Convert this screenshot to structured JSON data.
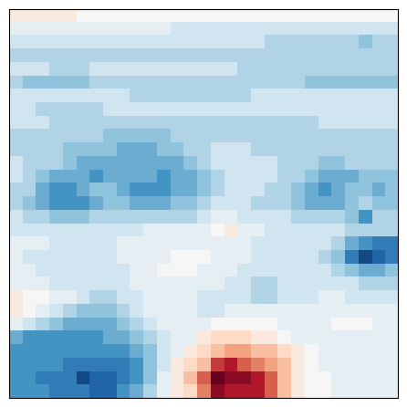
{
  "chart_data": {
    "type": "heatmap",
    "tick_labels": false,
    "zlim": [
      -10,
      10
    ],
    "color": "RdBu_r",
    "cells": [
      [
        1,
        1,
        1,
        1,
        1,
        0,
        0,
        0,
        0,
        0,
        0,
        0,
        0,
        0,
        0,
        0,
        0,
        0,
        0,
        0,
        0,
        0,
        0,
        0,
        0,
        0,
        0,
        0,
        0
      ],
      [
        -1,
        -1,
        -1,
        -1,
        -1,
        -1,
        -1,
        -1,
        -1,
        -1,
        -1,
        -1,
        -2,
        -2,
        -2,
        -2,
        -2,
        -2,
        -2,
        -2,
        -2,
        -2,
        -2,
        -2,
        -2,
        -2,
        -2,
        -2,
        -2
      ],
      [
        -2,
        -2,
        -2,
        -2,
        -2,
        -2,
        -2,
        -2,
        -2,
        -2,
        -2,
        -2,
        -2,
        -2,
        -2,
        -2,
        -2,
        -2,
        -2,
        -3,
        -3,
        -3,
        -3,
        -3,
        -3,
        -3,
        -4,
        -3,
        -3
      ],
      [
        -3,
        -3,
        -3,
        -3,
        -3,
        -3,
        -3,
        -3,
        -3,
        -3,
        -3,
        -3,
        -3,
        -3,
        -3,
        -3,
        -3,
        -3,
        -3,
        -3,
        -3,
        -3,
        -3,
        -3,
        -3,
        -3,
        -3,
        -3,
        -3
      ],
      [
        -2,
        -2,
        -2,
        -3,
        -3,
        -3,
        -2,
        -2,
        -2,
        -2,
        -2,
        -2,
        -2,
        -2,
        -2,
        -2,
        -2,
        -3,
        -3,
        -3,
        -3,
        -3,
        -3,
        -3,
        -3,
        -3,
        -3,
        -3,
        -3
      ],
      [
        -3,
        -4,
        -4,
        -4,
        -4,
        -4,
        -3,
        -3,
        -3,
        -3,
        -3,
        -3,
        -3,
        -3,
        -3,
        -3,
        -3,
        -3,
        -3,
        -3,
        -3,
        -3,
        -4,
        -4,
        -4,
        -4,
        -4,
        -4,
        -4
      ],
      [
        -2,
        -2,
        -2,
        -2,
        -2,
        -2,
        -2,
        -2,
        -2,
        -3,
        -3,
        -3,
        -3,
        -3,
        -3,
        -3,
        -3,
        -3,
        -2,
        -2,
        -2,
        -2,
        -2,
        -2,
        -2,
        -2,
        -2,
        -2,
        -2
      ],
      [
        -2,
        -2,
        -3,
        -3,
        -3,
        -3,
        -3,
        -2,
        -2,
        -2,
        -2,
        -2,
        -2,
        -2,
        -2,
        -2,
        -2,
        -2,
        -2,
        -2,
        -2,
        -2,
        -2,
        -2,
        -2,
        -2,
        -2,
        -2,
        -2
      ],
      [
        -2,
        -2,
        -2,
        -3,
        -3,
        -3,
        -3,
        -3,
        -3,
        -3,
        -3,
        -3,
        -3,
        -3,
        -3,
        -3,
        -3,
        -3,
        -3,
        -3,
        -3,
        -3,
        -3,
        -2,
        -2,
        -2,
        -2,
        -2,
        -2
      ],
      [
        -3,
        -3,
        -3,
        -3,
        -3,
        -3,
        -3,
        -4,
        -4,
        -4,
        -4,
        -4,
        -3,
        -3,
        -3,
        -3,
        -3,
        -3,
        -3,
        -3,
        -3,
        -3,
        -3,
        -3,
        -3,
        -3,
        -3,
        -3,
        -3
      ],
      [
        -3,
        -3,
        -3,
        -3,
        -4,
        -4,
        -4,
        -4,
        -5,
        -5,
        -5,
        -4,
        -4,
        -3,
        -3,
        -2,
        -2,
        -2,
        -3,
        -3,
        -3,
        -3,
        -3,
        -3,
        -3,
        -3,
        -3,
        -3,
        -3
      ],
      [
        -2,
        -3,
        -3,
        -3,
        -4,
        -5,
        -5,
        -5,
        -5,
        -5,
        -5,
        -5,
        -5,
        -4,
        -3,
        -2,
        -2,
        -2,
        -2,
        -2,
        -3,
        -3,
        -3,
        -4,
        -4,
        -3,
        -3,
        -3,
        -3
      ],
      [
        -2,
        -3,
        -4,
        -5,
        -5,
        -5,
        -6,
        -5,
        -5,
        -5,
        -5,
        -6,
        -5,
        -5,
        -4,
        -3,
        -2,
        -2,
        -2,
        -2,
        -3,
        -3,
        -4,
        -5,
        -5,
        -5,
        -4,
        -4,
        -4
      ],
      [
        -3,
        -3,
        -5,
        -6,
        -6,
        -5,
        -4,
        -4,
        -5,
        -6,
        -6,
        -6,
        -5,
        -5,
        -4,
        -3,
        -2,
        -2,
        -2,
        -3,
        -3,
        -4,
        -5,
        -6,
        -5,
        -4,
        -4,
        -5,
        -4
      ],
      [
        -3,
        -4,
        -5,
        -6,
        -6,
        -6,
        -5,
        -4,
        -4,
        -5,
        -5,
        -5,
        -4,
        -4,
        -3,
        -2,
        -2,
        -2,
        -3,
        -3,
        -3,
        -4,
        -5,
        -5,
        -5,
        -4,
        -3,
        -4,
        -4
      ],
      [
        -2,
        -3,
        -3,
        -4,
        -4,
        -4,
        -3,
        -3,
        -3,
        -3,
        -3,
        -3,
        -3,
        -3,
        -2,
        -1,
        -1,
        -2,
        -2,
        -2,
        -2,
        -3,
        -3,
        -3,
        -3,
        -4,
        -6,
        -3,
        -3
      ],
      [
        -2,
        -2,
        -2,
        -2,
        -2,
        -2,
        -2,
        -2,
        -2,
        -2,
        -1,
        -1,
        -1,
        -1,
        -1,
        0,
        1,
        -1,
        -1,
        -2,
        -2,
        -2,
        -2,
        -2,
        -2,
        -3,
        -3,
        -3,
        -3
      ],
      [
        -1,
        -1,
        -1,
        -2,
        -2,
        -2,
        -2,
        -2,
        -1,
        -1,
        -1,
        -1,
        -1,
        -1,
        -1,
        -1,
        -1,
        -1,
        -2,
        -2,
        -2,
        -2,
        -2,
        -2,
        -3,
        -5,
        -6,
        -7,
        -7
      ],
      [
        -1,
        -2,
        -2,
        -2,
        -2,
        -2,
        -2,
        -2,
        -1,
        -1,
        -1,
        -1,
        0,
        0,
        0,
        -1,
        -1,
        -1,
        -2,
        -2,
        -2,
        -2,
        -2,
        -3,
        -4,
        -7,
        -9,
        -8,
        -7
      ],
      [
        -1,
        -1,
        -2,
        -2,
        -2,
        -2,
        -2,
        -2,
        -2,
        -1,
        -1,
        0,
        0,
        0,
        -1,
        -1,
        -1,
        -2,
        -2,
        -2,
        -2,
        -2,
        -2,
        -2,
        -3,
        -4,
        -5,
        -5,
        -4
      ],
      [
        -1,
        -1,
        -1,
        -2,
        -2,
        -2,
        -2,
        -2,
        -2,
        -1,
        -1,
        -1,
        -1,
        -1,
        -1,
        -1,
        -2,
        -2,
        -3,
        -3,
        -2,
        -2,
        -2,
        -2,
        -2,
        -2,
        -3,
        -3,
        -3
      ],
      [
        1,
        0,
        0,
        -1,
        -1,
        -2,
        -3,
        -3,
        -2,
        -2,
        -1,
        -1,
        -1,
        -1,
        -2,
        -2,
        -2,
        -2,
        -3,
        -3,
        -2,
        -2,
        -2,
        -1,
        -1,
        -2,
        -2,
        -2,
        -2
      ],
      [
        1,
        0,
        -1,
        -2,
        -3,
        -4,
        -4,
        -4,
        -3,
        -2,
        -1,
        -1,
        -1,
        -1,
        -2,
        -2,
        -1,
        -1,
        -1,
        -1,
        -1,
        -1,
        -1,
        -1,
        -1,
        -1,
        -1,
        -1,
        -1
      ],
      [
        -1,
        -2,
        -3,
        -4,
        -5,
        -5,
        -5,
        -5,
        -4,
        -3,
        -2,
        -1,
        -1,
        -1,
        -1,
        0,
        0,
        0,
        0,
        0,
        -1,
        -1,
        -1,
        -1,
        0,
        0,
        0,
        -1,
        -1
      ],
      [
        -5,
        -6,
        -6,
        -6,
        -6,
        -6,
        -6,
        -5,
        -5,
        -4,
        -3,
        -2,
        -1,
        -1,
        1,
        2,
        2,
        2,
        1,
        1,
        0,
        -1,
        -1,
        -1,
        -1,
        -1,
        -1,
        -1,
        -1
      ],
      [
        -6,
        -6,
        -6,
        -6,
        -6,
        -6,
        -6,
        -6,
        -6,
        -5,
        -4,
        -2,
        -1,
        1,
        2,
        3,
        4,
        4,
        3,
        3,
        2,
        1,
        0,
        -1,
        -1,
        -1,
        -1,
        -1,
        -1
      ],
      [
        -6,
        -6,
        -6,
        -6,
        -7,
        -7,
        -7,
        -7,
        -7,
        -6,
        -4,
        -2,
        1,
        2,
        3,
        7,
        8,
        6,
        5,
        4,
        3,
        1,
        0,
        -1,
        -1,
        -1,
        -1,
        -1,
        -1
      ],
      [
        -6,
        -6,
        -7,
        -7,
        -7,
        -9,
        -8,
        -8,
        -7,
        -6,
        -4,
        -1,
        1,
        3,
        6,
        10,
        9,
        9,
        8,
        6,
        3,
        1,
        0,
        0,
        -1,
        -1,
        -1,
        -1,
        -1
      ],
      [
        -6,
        -6,
        -6,
        -7,
        -7,
        -7,
        -8,
        -8,
        -6,
        -5,
        -3,
        -1,
        1,
        2,
        5,
        9,
        8,
        8,
        8,
        6,
        3,
        1,
        0,
        0,
        -1,
        -1,
        -1,
        -1,
        -1
      ]
    ]
  }
}
